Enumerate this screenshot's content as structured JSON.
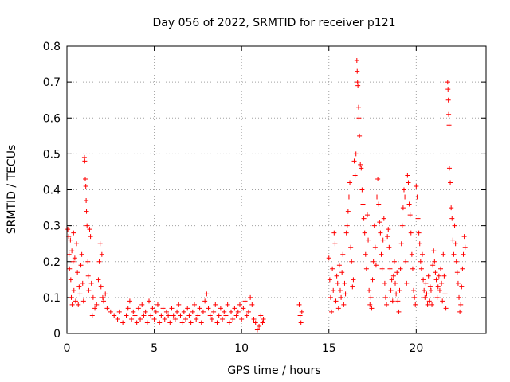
{
  "chart_data": {
    "type": "scatter",
    "title": "Day 056 of 2022, SRMTID for receiver p121",
    "xlabel": "GPS time / hours",
    "ylabel": "SRMTID / TECUs",
    "xlim": [
      0,
      24
    ],
    "ylim": [
      0,
      0.8
    ],
    "xticks": [
      0,
      5,
      10,
      15,
      20
    ],
    "xtick_labels": [
      "0",
      "5",
      "10",
      "15",
      "20"
    ],
    "yticks": [
      0,
      0.1,
      0.2,
      0.3,
      0.4,
      0.5,
      0.6,
      0.7,
      0.8
    ],
    "ytick_labels": [
      "0",
      "0.1",
      "0.2",
      "0.3",
      "0.4",
      "0.5",
      "0.6",
      "0.7",
      "0.8"
    ],
    "grid": true,
    "marker": "plus",
    "series": [
      {
        "name": "SRMTID",
        "color": "#ff0000",
        "points": [
          [
            0.05,
            0.29
          ],
          [
            0.1,
            0.27
          ],
          [
            0.12,
            0.22
          ],
          [
            0.15,
            0.18
          ],
          [
            0.2,
            0.26
          ],
          [
            0.22,
            0.15
          ],
          [
            0.25,
            0.1
          ],
          [
            0.28,
            0.23
          ],
          [
            0.3,
            0.08
          ],
          [
            0.35,
            0.2
          ],
          [
            0.38,
            0.28
          ],
          [
            0.4,
            0.12
          ],
          [
            0.45,
            0.21
          ],
          [
            0.5,
            0.09
          ],
          [
            0.55,
            0.25
          ],
          [
            0.6,
            0.17
          ],
          [
            0.65,
            0.08
          ],
          [
            0.7,
            0.13
          ],
          [
            0.75,
            0.11
          ],
          [
            0.8,
            0.19
          ],
          [
            0.85,
            0.22
          ],
          [
            0.9,
            0.14
          ],
          [
            0.95,
            0.09
          ],
          [
            1.0,
            0.49
          ],
          [
            1.02,
            0.48
          ],
          [
            1.05,
            0.43
          ],
          [
            1.08,
            0.41
          ],
          [
            1.1,
            0.37
          ],
          [
            1.12,
            0.34
          ],
          [
            1.15,
            0.3
          ],
          [
            1.2,
            0.2
          ],
          [
            1.22,
            0.16
          ],
          [
            1.25,
            0.12
          ],
          [
            1.3,
            0.29
          ],
          [
            1.35,
            0.27
          ],
          [
            1.4,
            0.14
          ],
          [
            1.45,
            0.05
          ],
          [
            1.5,
            0.1
          ],
          [
            1.6,
            0.07
          ],
          [
            1.7,
            0.08
          ],
          [
            1.8,
            0.15
          ],
          [
            1.85,
            0.2
          ],
          [
            1.9,
            0.25
          ],
          [
            1.95,
            0.13
          ],
          [
            2.0,
            0.22
          ],
          [
            2.05,
            0.1
          ],
          [
            2.1,
            0.09
          ],
          [
            2.2,
            0.11
          ],
          [
            2.3,
            0.07
          ],
          [
            2.5,
            0.06
          ],
          [
            2.7,
            0.05
          ],
          [
            2.9,
            0.04
          ],
          [
            3.0,
            0.06
          ],
          [
            3.2,
            0.03
          ],
          [
            3.4,
            0.05
          ],
          [
            3.5,
            0.07
          ],
          [
            3.6,
            0.09
          ],
          [
            3.7,
            0.04
          ],
          [
            3.8,
            0.06
          ],
          [
            3.9,
            0.05
          ],
          [
            4.0,
            0.03
          ],
          [
            4.1,
            0.07
          ],
          [
            4.2,
            0.04
          ],
          [
            4.3,
            0.08
          ],
          [
            4.4,
            0.05
          ],
          [
            4.5,
            0.06
          ],
          [
            4.6,
            0.03
          ],
          [
            4.7,
            0.09
          ],
          [
            4.8,
            0.05
          ],
          [
            4.9,
            0.07
          ],
          [
            5.0,
            0.04
          ],
          [
            5.1,
            0.06
          ],
          [
            5.2,
            0.08
          ],
          [
            5.3,
            0.03
          ],
          [
            5.4,
            0.05
          ],
          [
            5.5,
            0.07
          ],
          [
            5.6,
            0.04
          ],
          [
            5.7,
            0.06
          ],
          [
            5.8,
            0.05
          ],
          [
            5.9,
            0.03
          ],
          [
            6.0,
            0.07
          ],
          [
            6.1,
            0.05
          ],
          [
            6.2,
            0.04
          ],
          [
            6.3,
            0.06
          ],
          [
            6.4,
            0.08
          ],
          [
            6.5,
            0.05
          ],
          [
            6.6,
            0.03
          ],
          [
            6.7,
            0.06
          ],
          [
            6.8,
            0.04
          ],
          [
            6.9,
            0.07
          ],
          [
            7.0,
            0.05
          ],
          [
            7.1,
            0.03
          ],
          [
            7.2,
            0.06
          ],
          [
            7.3,
            0.08
          ],
          [
            7.4,
            0.04
          ],
          [
            7.5,
            0.05
          ],
          [
            7.6,
            0.07
          ],
          [
            7.7,
            0.03
          ],
          [
            7.8,
            0.06
          ],
          [
            7.9,
            0.09
          ],
          [
            8.0,
            0.11
          ],
          [
            8.1,
            0.07
          ],
          [
            8.2,
            0.05
          ],
          [
            8.3,
            0.04
          ],
          [
            8.4,
            0.06
          ],
          [
            8.5,
            0.08
          ],
          [
            8.6,
            0.03
          ],
          [
            8.7,
            0.05
          ],
          [
            8.8,
            0.07
          ],
          [
            8.9,
            0.04
          ],
          [
            9.0,
            0.06
          ],
          [
            9.1,
            0.05
          ],
          [
            9.2,
            0.08
          ],
          [
            9.3,
            0.03
          ],
          [
            9.4,
            0.06
          ],
          [
            9.5,
            0.04
          ],
          [
            9.6,
            0.07
          ],
          [
            9.7,
            0.05
          ],
          [
            9.8,
            0.06
          ],
          [
            9.9,
            0.08
          ],
          [
            10.0,
            0.04
          ],
          [
            10.1,
            0.07
          ],
          [
            10.2,
            0.09
          ],
          [
            10.3,
            0.05
          ],
          [
            10.4,
            0.06
          ],
          [
            10.5,
            0.1
          ],
          [
            10.6,
            0.08
          ],
          [
            10.7,
            0.04
          ],
          [
            10.8,
            0.03
          ],
          [
            10.9,
            0.01
          ],
          [
            11.0,
            0.02
          ],
          [
            11.1,
            0.05
          ],
          [
            11.2,
            0.03
          ],
          [
            11.25,
            0.04
          ],
          [
            13.3,
            0.08
          ],
          [
            13.35,
            0.05
          ],
          [
            13.4,
            0.03
          ],
          [
            13.45,
            0.06
          ],
          [
            15.0,
            0.21
          ],
          [
            15.05,
            0.15
          ],
          [
            15.1,
            0.1
          ],
          [
            15.15,
            0.06
          ],
          [
            15.2,
            0.18
          ],
          [
            15.25,
            0.12
          ],
          [
            15.3,
            0.28
          ],
          [
            15.35,
            0.25
          ],
          [
            15.4,
            0.09
          ],
          [
            15.45,
            0.16
          ],
          [
            15.5,
            0.14
          ],
          [
            15.55,
            0.07
          ],
          [
            15.6,
            0.19
          ],
          [
            15.65,
            0.12
          ],
          [
            15.7,
            0.1
          ],
          [
            15.75,
            0.17
          ],
          [
            15.8,
            0.22
          ],
          [
            15.85,
            0.08
          ],
          [
            15.9,
            0.14
          ],
          [
            15.95,
            0.11
          ],
          [
            16.0,
            0.28
          ],
          [
            16.05,
            0.3
          ],
          [
            16.1,
            0.34
          ],
          [
            16.15,
            0.38
          ],
          [
            16.2,
            0.42
          ],
          [
            16.25,
            0.24
          ],
          [
            16.3,
            0.2
          ],
          [
            16.35,
            0.13
          ],
          [
            16.4,
            0.15
          ],
          [
            16.45,
            0.48
          ],
          [
            16.5,
            0.44
          ],
          [
            16.55,
            0.5
          ],
          [
            16.6,
            0.76
          ],
          [
            16.62,
            0.73
          ],
          [
            16.64,
            0.7
          ],
          [
            16.66,
            0.69
          ],
          [
            16.7,
            0.63
          ],
          [
            16.72,
            0.6
          ],
          [
            16.75,
            0.55
          ],
          [
            16.8,
            0.47
          ],
          [
            16.85,
            0.46
          ],
          [
            16.9,
            0.4
          ],
          [
            16.95,
            0.36
          ],
          [
            17.0,
            0.32
          ],
          [
            17.05,
            0.28
          ],
          [
            17.1,
            0.22
          ],
          [
            17.15,
            0.18
          ],
          [
            17.2,
            0.33
          ],
          [
            17.25,
            0.26
          ],
          [
            17.3,
            0.12
          ],
          [
            17.35,
            0.08
          ],
          [
            17.4,
            0.1
          ],
          [
            17.45,
            0.07
          ],
          [
            17.5,
            0.15
          ],
          [
            17.55,
            0.2
          ],
          [
            17.6,
            0.3
          ],
          [
            17.65,
            0.24
          ],
          [
            17.7,
            0.19
          ],
          [
            17.75,
            0.38
          ],
          [
            17.8,
            0.43
          ],
          [
            17.85,
            0.36
          ],
          [
            17.9,
            0.31
          ],
          [
            17.95,
            0.28
          ],
          [
            18.0,
            0.22
          ],
          [
            18.05,
            0.18
          ],
          [
            18.1,
            0.26
          ],
          [
            18.15,
            0.32
          ],
          [
            18.2,
            0.14
          ],
          [
            18.25,
            0.1
          ],
          [
            18.3,
            0.08
          ],
          [
            18.35,
            0.27
          ],
          [
            18.4,
            0.29
          ],
          [
            18.45,
            0.24
          ],
          [
            18.5,
            0.18
          ],
          [
            18.55,
            0.12
          ],
          [
            18.6,
            0.15
          ],
          [
            18.65,
            0.09
          ],
          [
            18.7,
            0.16
          ],
          [
            18.75,
            0.2
          ],
          [
            18.8,
            0.14
          ],
          [
            18.85,
            0.11
          ],
          [
            18.9,
            0.17
          ],
          [
            18.95,
            0.09
          ],
          [
            19.0,
            0.06
          ],
          [
            19.05,
            0.12
          ],
          [
            19.1,
            0.18
          ],
          [
            19.15,
            0.25
          ],
          [
            19.2,
            0.3
          ],
          [
            19.25,
            0.35
          ],
          [
            19.3,
            0.4
          ],
          [
            19.35,
            0.38
          ],
          [
            19.4,
            0.2
          ],
          [
            19.45,
            0.14
          ],
          [
            19.5,
            0.44
          ],
          [
            19.55,
            0.42
          ],
          [
            19.6,
            0.36
          ],
          [
            19.65,
            0.33
          ],
          [
            19.7,
            0.28
          ],
          [
            19.75,
            0.22
          ],
          [
            19.8,
            0.18
          ],
          [
            19.85,
            0.12
          ],
          [
            19.9,
            0.1
          ],
          [
            19.95,
            0.08
          ],
          [
            20.0,
            0.41
          ],
          [
            20.05,
            0.38
          ],
          [
            20.1,
            0.32
          ],
          [
            20.15,
            0.28
          ],
          [
            20.2,
            0.25
          ],
          [
            20.25,
            0.2
          ],
          [
            20.3,
            0.18
          ],
          [
            20.35,
            0.22
          ],
          [
            20.4,
            0.15
          ],
          [
            20.45,
            0.12
          ],
          [
            20.5,
            0.1
          ],
          [
            20.55,
            0.14
          ],
          [
            20.6,
            0.11
          ],
          [
            20.65,
            0.08
          ],
          [
            20.7,
            0.16
          ],
          [
            20.75,
            0.09
          ],
          [
            20.8,
            0.13
          ],
          [
            20.85,
            0.12
          ],
          [
            20.9,
            0.08
          ],
          [
            20.95,
            0.19
          ],
          [
            21.0,
            0.23
          ],
          [
            21.05,
            0.2
          ],
          [
            21.1,
            0.17
          ],
          [
            21.15,
            0.15
          ],
          [
            21.2,
            0.1
          ],
          [
            21.25,
            0.13
          ],
          [
            21.3,
            0.16
          ],
          [
            21.35,
            0.12
          ],
          [
            21.4,
            0.18
          ],
          [
            21.45,
            0.14
          ],
          [
            21.5,
            0.09
          ],
          [
            21.55,
            0.22
          ],
          [
            21.6,
            0.16
          ],
          [
            21.65,
            0.11
          ],
          [
            21.7,
            0.07
          ],
          [
            21.8,
            0.7
          ],
          [
            21.82,
            0.68
          ],
          [
            21.84,
            0.65
          ],
          [
            21.86,
            0.61
          ],
          [
            21.88,
            0.58
          ],
          [
            21.9,
            0.46
          ],
          [
            21.95,
            0.42
          ],
          [
            22.0,
            0.35
          ],
          [
            22.05,
            0.32
          ],
          [
            22.1,
            0.26
          ],
          [
            22.15,
            0.22
          ],
          [
            22.2,
            0.3
          ],
          [
            22.25,
            0.25
          ],
          [
            22.3,
            0.2
          ],
          [
            22.35,
            0.17
          ],
          [
            22.4,
            0.14
          ],
          [
            22.45,
            0.1
          ],
          [
            22.5,
            0.06
          ],
          [
            22.55,
            0.08
          ],
          [
            22.6,
            0.13
          ],
          [
            22.65,
            0.18
          ],
          [
            22.7,
            0.22
          ],
          [
            22.75,
            0.27
          ],
          [
            22.8,
            0.24
          ]
        ]
      }
    ]
  }
}
